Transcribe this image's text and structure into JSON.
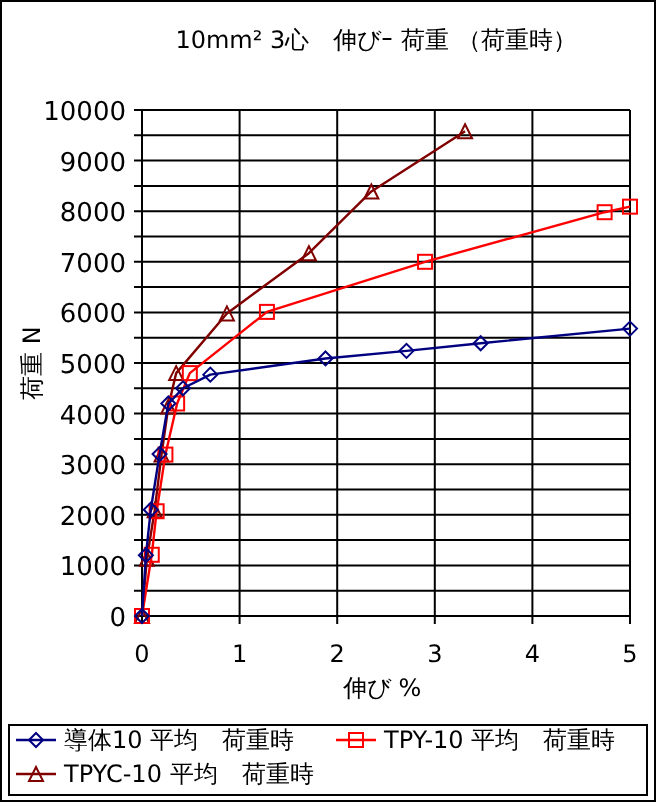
{
  "chart_data": {
    "type": "line",
    "title": "10mm² 3心　伸びｰ 荷重 （荷重時）",
    "xlabel": "伸び %",
    "ylabel": "荷重 N",
    "xlim": [
      0,
      5
    ],
    "xticks": [
      0,
      1,
      2,
      3,
      4,
      5
    ],
    "ylim": [
      0,
      10000
    ],
    "yticks": [
      0,
      {
        "value": 500,
        "label": null
      },
      1000,
      {
        "value": 1500,
        "label": null
      },
      2000,
      {
        "value": 2500,
        "label": null
      },
      3000,
      {
        "value": 3500,
        "label": null
      },
      4000,
      {
        "value": 4500,
        "label": null
      },
      5000,
      {
        "value": 5500,
        "label": null
      },
      6000,
      {
        "value": 6500,
        "label": null
      },
      7000,
      {
        "value": 7500,
        "label": null
      },
      8000,
      {
        "value": 8500,
        "label": null
      },
      9000,
      {
        "value": 9500,
        "label": null
      },
      10000
    ],
    "grid": true,
    "legend": "bottom",
    "series": [
      {
        "name": "導体10 平均　荷重時",
        "color": "#000080",
        "marker": "diamond",
        "x": [
          0,
          0.04,
          0.09,
          0.18,
          0.27,
          0.42,
          0.7,
          1.88,
          2.71,
          3.47,
          5
        ],
        "values": [
          0,
          1200,
          2100,
          3200,
          4200,
          4500,
          4770,
          5090,
          5240,
          5390,
          5680
        ]
      },
      {
        "name": "TPY-10 平均　荷重時",
        "color": "#ff0000",
        "marker": "square",
        "x": [
          0,
          0.1,
          0.15,
          0.24,
          0.36,
          0.49,
          1.28,
          2.9,
          4.74,
          5
        ],
        "values": [
          0,
          1210,
          2070,
          3190,
          4200,
          4800,
          6010,
          7000,
          7980,
          8090
        ]
      },
      {
        "name": "TPYC-10 平均　荷重時",
        "color": "#800000",
        "marker": "triangle",
        "x": [
          0,
          0.05,
          0.13,
          0.2,
          0.27,
          0.35,
          0.87,
          1.71,
          2.35,
          3.31
        ],
        "values": [
          0,
          1130,
          2090,
          3190,
          4140,
          4800,
          5980,
          7170,
          8390,
          9580
        ]
      }
    ]
  }
}
